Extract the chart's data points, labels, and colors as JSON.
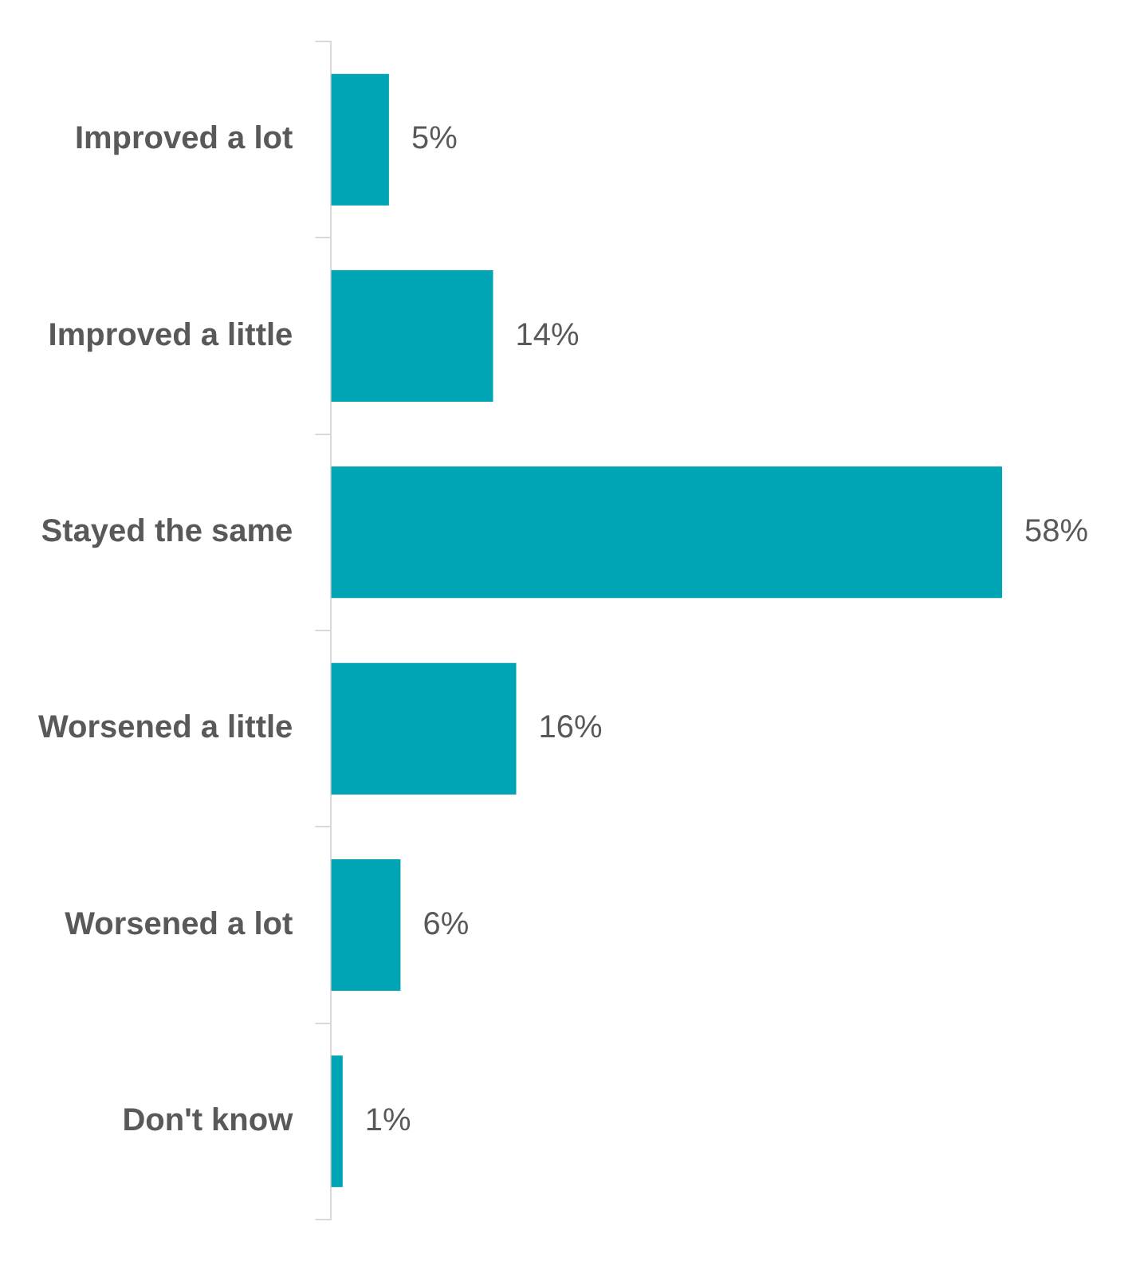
{
  "chart_data": {
    "type": "bar",
    "orientation": "horizontal",
    "categories": [
      "Improved a lot",
      "Improved a little",
      "Stayed the same",
      "Worsened a little",
      "Worsened a lot",
      "Don't know"
    ],
    "values": [
      5,
      14,
      58,
      16,
      6,
      1
    ],
    "color": "#00a5b5",
    "value_labels": [
      "5%",
      "14%",
      "58%",
      "16%",
      "6%",
      "1%"
    ]
  }
}
